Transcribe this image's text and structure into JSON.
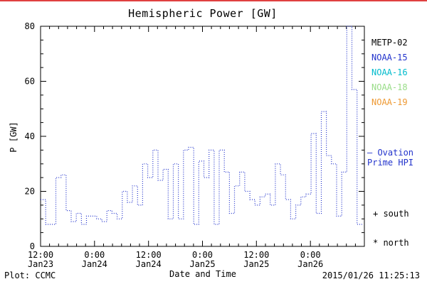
{
  "title": "Hemispheric Power [GW]",
  "axes": {
    "ylabel": "P [GW]",
    "xlabel": "Date and Time",
    "ylim": [
      0,
      80
    ],
    "yticks": [
      0,
      20,
      40,
      60,
      80
    ],
    "y_minor_step": 5,
    "xlim_hours": [
      0,
      72
    ],
    "x_minor_step_hours": 2,
    "xticks": [
      {
        "h": 0,
        "time": "12:00",
        "date": "Jan23"
      },
      {
        "h": 12,
        "time": "0:00",
        "date": "Jan24"
      },
      {
        "h": 24,
        "time": "12:00",
        "date": "Jan24"
      },
      {
        "h": 36,
        "time": "0:00",
        "date": "Jan25"
      },
      {
        "h": 48,
        "time": "12:00",
        "date": "Jan25"
      },
      {
        "h": 60,
        "time": "0:00",
        "date": "Jan26"
      }
    ]
  },
  "legend": {
    "satellites": [
      {
        "label": "METP-02",
        "color": "#000000"
      },
      {
        "label": "NOAA-15",
        "color": "#2233cc"
      },
      {
        "label": "NOAA-16",
        "color": "#00bbcc"
      },
      {
        "label": "NOAA-18",
        "color": "#99dd88"
      },
      {
        "label": "NOAA-19",
        "color": "#ee9933"
      }
    ],
    "note_line1": "– Ovation",
    "note_line2": "Prime HPI",
    "note_color": "#2233cc",
    "south_marker": "+ south",
    "north_marker": "* north"
  },
  "footer": {
    "plot_credit": "Plot: CCMC",
    "timestamp": "2015/01/26 11:25:13"
  },
  "chart_data": {
    "type": "line",
    "style": "step-dotted",
    "line_color": "#2233cc",
    "title": "Hemispheric Power [GW]",
    "xlabel": "Date and Time",
    "ylabel": "P [GW]",
    "ylim": [
      0,
      80
    ],
    "x_start_hours": 0,
    "x_end_hours": 71.5,
    "x_unit": "hours since 2015-01-23 12:00",
    "values": [
      17,
      8,
      8,
      25,
      26,
      13,
      9,
      12,
      8,
      11,
      11,
      10,
      9,
      13,
      12,
      10,
      20,
      16,
      22,
      15,
      30,
      25,
      35,
      24,
      28,
      10,
      30,
      10,
      35,
      36,
      8,
      31,
      25,
      35,
      8,
      35,
      27,
      12,
      22,
      27,
      20,
      17,
      15,
      18,
      19,
      15,
      30,
      26,
      17,
      10,
      15,
      18,
      19,
      41,
      12,
      49,
      33,
      30,
      11,
      27,
      80,
      57,
      8
    ]
  }
}
